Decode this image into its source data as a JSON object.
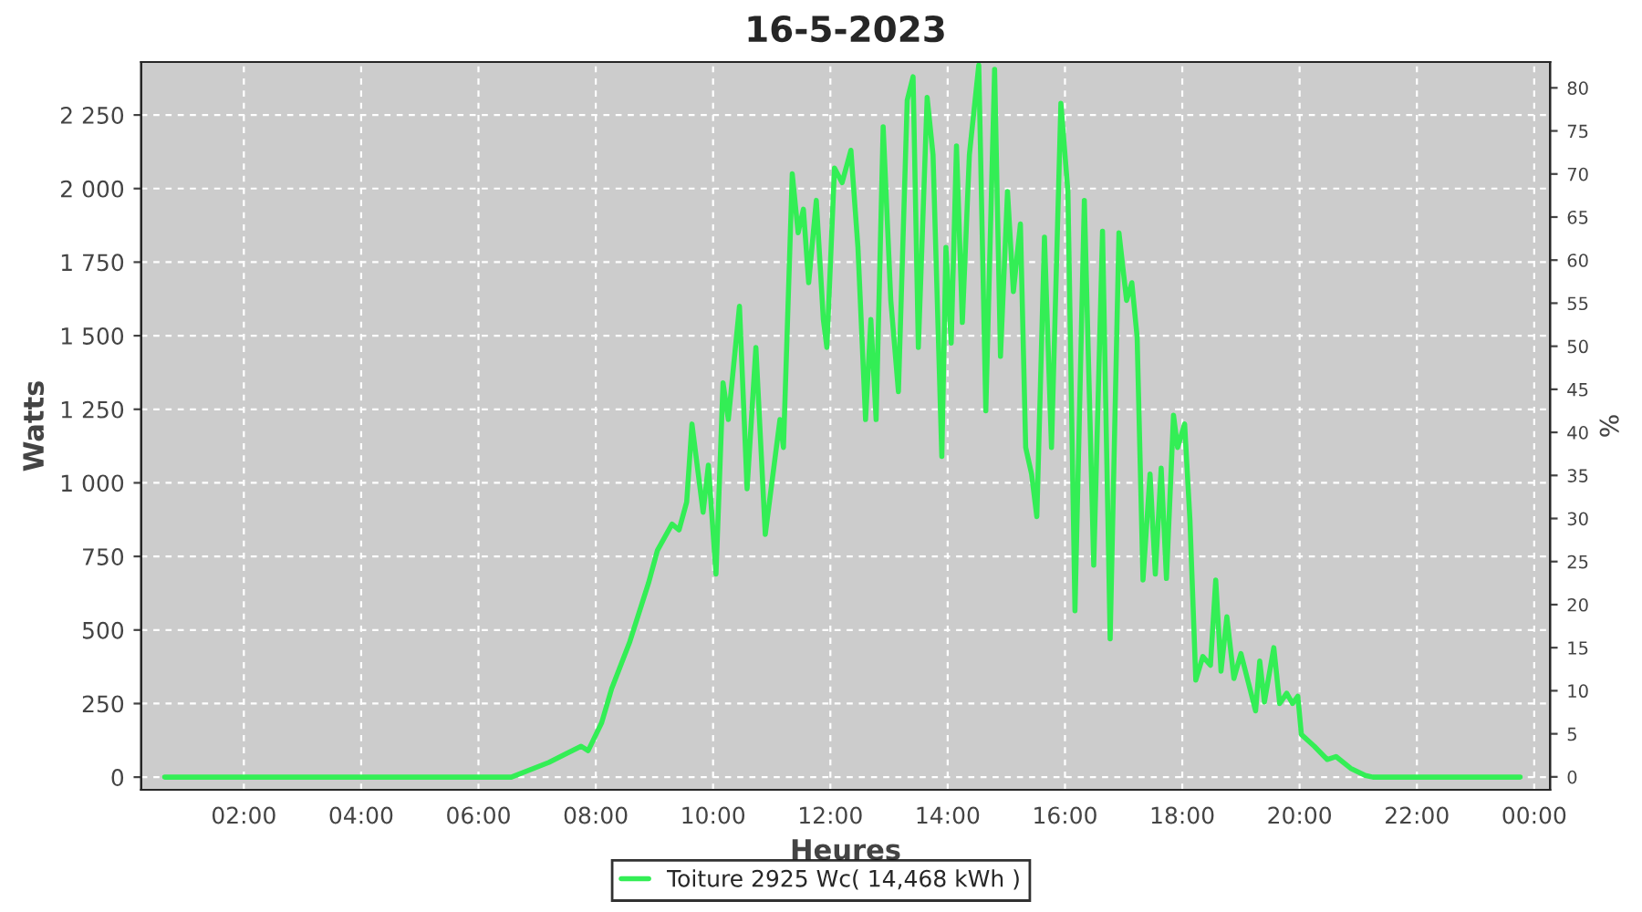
{
  "chart_data": {
    "type": "line",
    "title": "16-5-2023",
    "xlabel": "Heures",
    "ylabel": "Watts",
    "y2label": "%",
    "xlim": [
      0.25,
      24.27
    ],
    "ylim": [
      -43,
      2430
    ],
    "y2lim": [
      -1.5,
      83
    ],
    "xticks": [
      {
        "value": 2,
        "label": "02:00"
      },
      {
        "value": 4,
        "label": "04:00"
      },
      {
        "value": 6,
        "label": "06:00"
      },
      {
        "value": 8,
        "label": "08:00"
      },
      {
        "value": 10,
        "label": "10:00"
      },
      {
        "value": 12,
        "label": "12:00"
      },
      {
        "value": 14,
        "label": "14:00"
      },
      {
        "value": 16,
        "label": "16:00"
      },
      {
        "value": 18,
        "label": "18:00"
      },
      {
        "value": 20,
        "label": "20:00"
      },
      {
        "value": 22,
        "label": "22:00"
      },
      {
        "value": 24,
        "label": "00:00"
      }
    ],
    "yticks": [
      0,
      250,
      500,
      750,
      {
        "value": 1000,
        "label": "1 000"
      },
      {
        "value": 1250,
        "label": "1 250"
      },
      {
        "value": 1500,
        "label": "1 500"
      },
      {
        "value": 1750,
        "label": "1 750"
      },
      {
        "value": 2000,
        "label": "2 000"
      },
      {
        "value": 2250,
        "label": "2 250"
      }
    ],
    "y2ticks": [
      0,
      5,
      10,
      15,
      20,
      25,
      30,
      35,
      40,
      45,
      50,
      55,
      60,
      65,
      70,
      75,
      80
    ],
    "grid": true,
    "legend": "bottom",
    "marker": "none",
    "line_style": "solid",
    "series": [
      {
        "name": "Toiture 2925 Wc( 14,468 kWh )",
        "color": "#33ee55",
        "x": [
          0.65,
          6.56,
          7.2,
          7.5,
          7.75,
          7.87,
          8.1,
          8.27,
          8.58,
          8.9,
          9.05,
          9.3,
          9.42,
          9.55,
          9.64,
          9.83,
          9.92,
          10.05,
          10.17,
          10.26,
          10.45,
          10.58,
          10.73,
          10.89,
          11.14,
          11.2,
          11.35,
          11.45,
          11.54,
          11.63,
          11.76,
          11.88,
          11.94,
          12.07,
          12.2,
          12.35,
          12.47,
          12.6,
          12.69,
          12.78,
          12.9,
          13.03,
          13.16,
          13.31,
          13.41,
          13.5,
          13.65,
          13.75,
          13.9,
          13.97,
          14.06,
          14.15,
          14.25,
          14.37,
          14.53,
          14.65,
          14.8,
          14.9,
          15.02,
          15.12,
          15.24,
          15.33,
          15.43,
          15.52,
          15.65,
          15.77,
          15.93,
          16.05,
          16.17,
          16.33,
          16.49,
          16.64,
          16.77,
          16.92,
          17.05,
          17.14,
          17.23,
          17.33,
          17.45,
          17.54,
          17.64,
          17.73,
          17.85,
          17.92,
          18.04,
          18.13,
          18.23,
          18.35,
          18.48,
          18.57,
          18.66,
          18.76,
          18.88,
          19.0,
          19.25,
          19.32,
          19.4,
          19.56,
          19.66,
          19.78,
          19.88,
          19.97,
          20.03,
          20.25,
          20.47,
          20.62,
          20.87,
          21.12,
          21.25,
          23.76
        ],
        "values": [
          0,
          0,
          50,
          80,
          105,
          90,
          185,
          300,
          460,
          660,
          770,
          860,
          840,
          935,
          1200,
          900,
          1060,
          690,
          1340,
          1215,
          1600,
          980,
          1460,
          825,
          1215,
          1120,
          2050,
          1850,
          1930,
          1680,
          1960,
          1555,
          1460,
          2070,
          2020,
          2130,
          1800,
          1215,
          1555,
          1215,
          2210,
          1620,
          1310,
          2300,
          2380,
          1460,
          2310,
          2115,
          1090,
          1800,
          1475,
          2145,
          1545,
          2115,
          2420,
          1245,
          2405,
          1430,
          1990,
          1650,
          1880,
          1120,
          1030,
          885,
          1835,
          1120,
          2290,
          1990,
          565,
          1960,
          720,
          1855,
          470,
          1850,
          1620,
          1680,
          1495,
          670,
          1030,
          690,
          1050,
          675,
          1230,
          1120,
          1200,
          875,
          330,
          410,
          380,
          670,
          360,
          545,
          335,
          420,
          225,
          395,
          255,
          440,
          250,
          285,
          250,
          275,
          145,
          105,
          60,
          70,
          30,
          6,
          0,
          0
        ]
      }
    ]
  }
}
